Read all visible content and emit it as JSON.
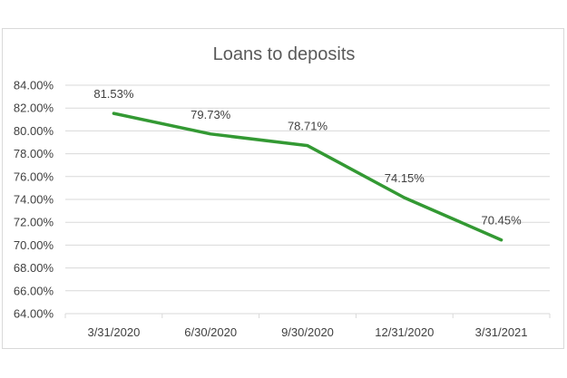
{
  "chart_data": {
    "type": "line",
    "title": "Loans to deposits",
    "xlabel": "",
    "ylabel": "",
    "categories": [
      "3/31/2020",
      "6/30/2020",
      "9/30/2020",
      "12/31/2020",
      "3/31/2021"
    ],
    "series": [
      {
        "values": [
          81.53,
          79.73,
          78.71,
          74.15,
          70.45
        ],
        "data_labels": [
          "81.53%",
          "79.73%",
          "78.71%",
          "74.15%",
          "70.45%"
        ],
        "color": "#339933"
      }
    ],
    "ylim": [
      64,
      84
    ],
    "y_ticks": [
      84,
      82,
      80,
      78,
      76,
      74,
      72,
      70,
      68,
      66,
      64
    ],
    "y_tick_labels": [
      "84.00%",
      "82.00%",
      "80.00%",
      "78.00%",
      "76.00%",
      "74.00%",
      "72.00%",
      "70.00%",
      "68.00%",
      "66.00%",
      "64.00%"
    ],
    "grid": true,
    "legend": "none",
    "gridline_color": "#d9d9d9"
  }
}
